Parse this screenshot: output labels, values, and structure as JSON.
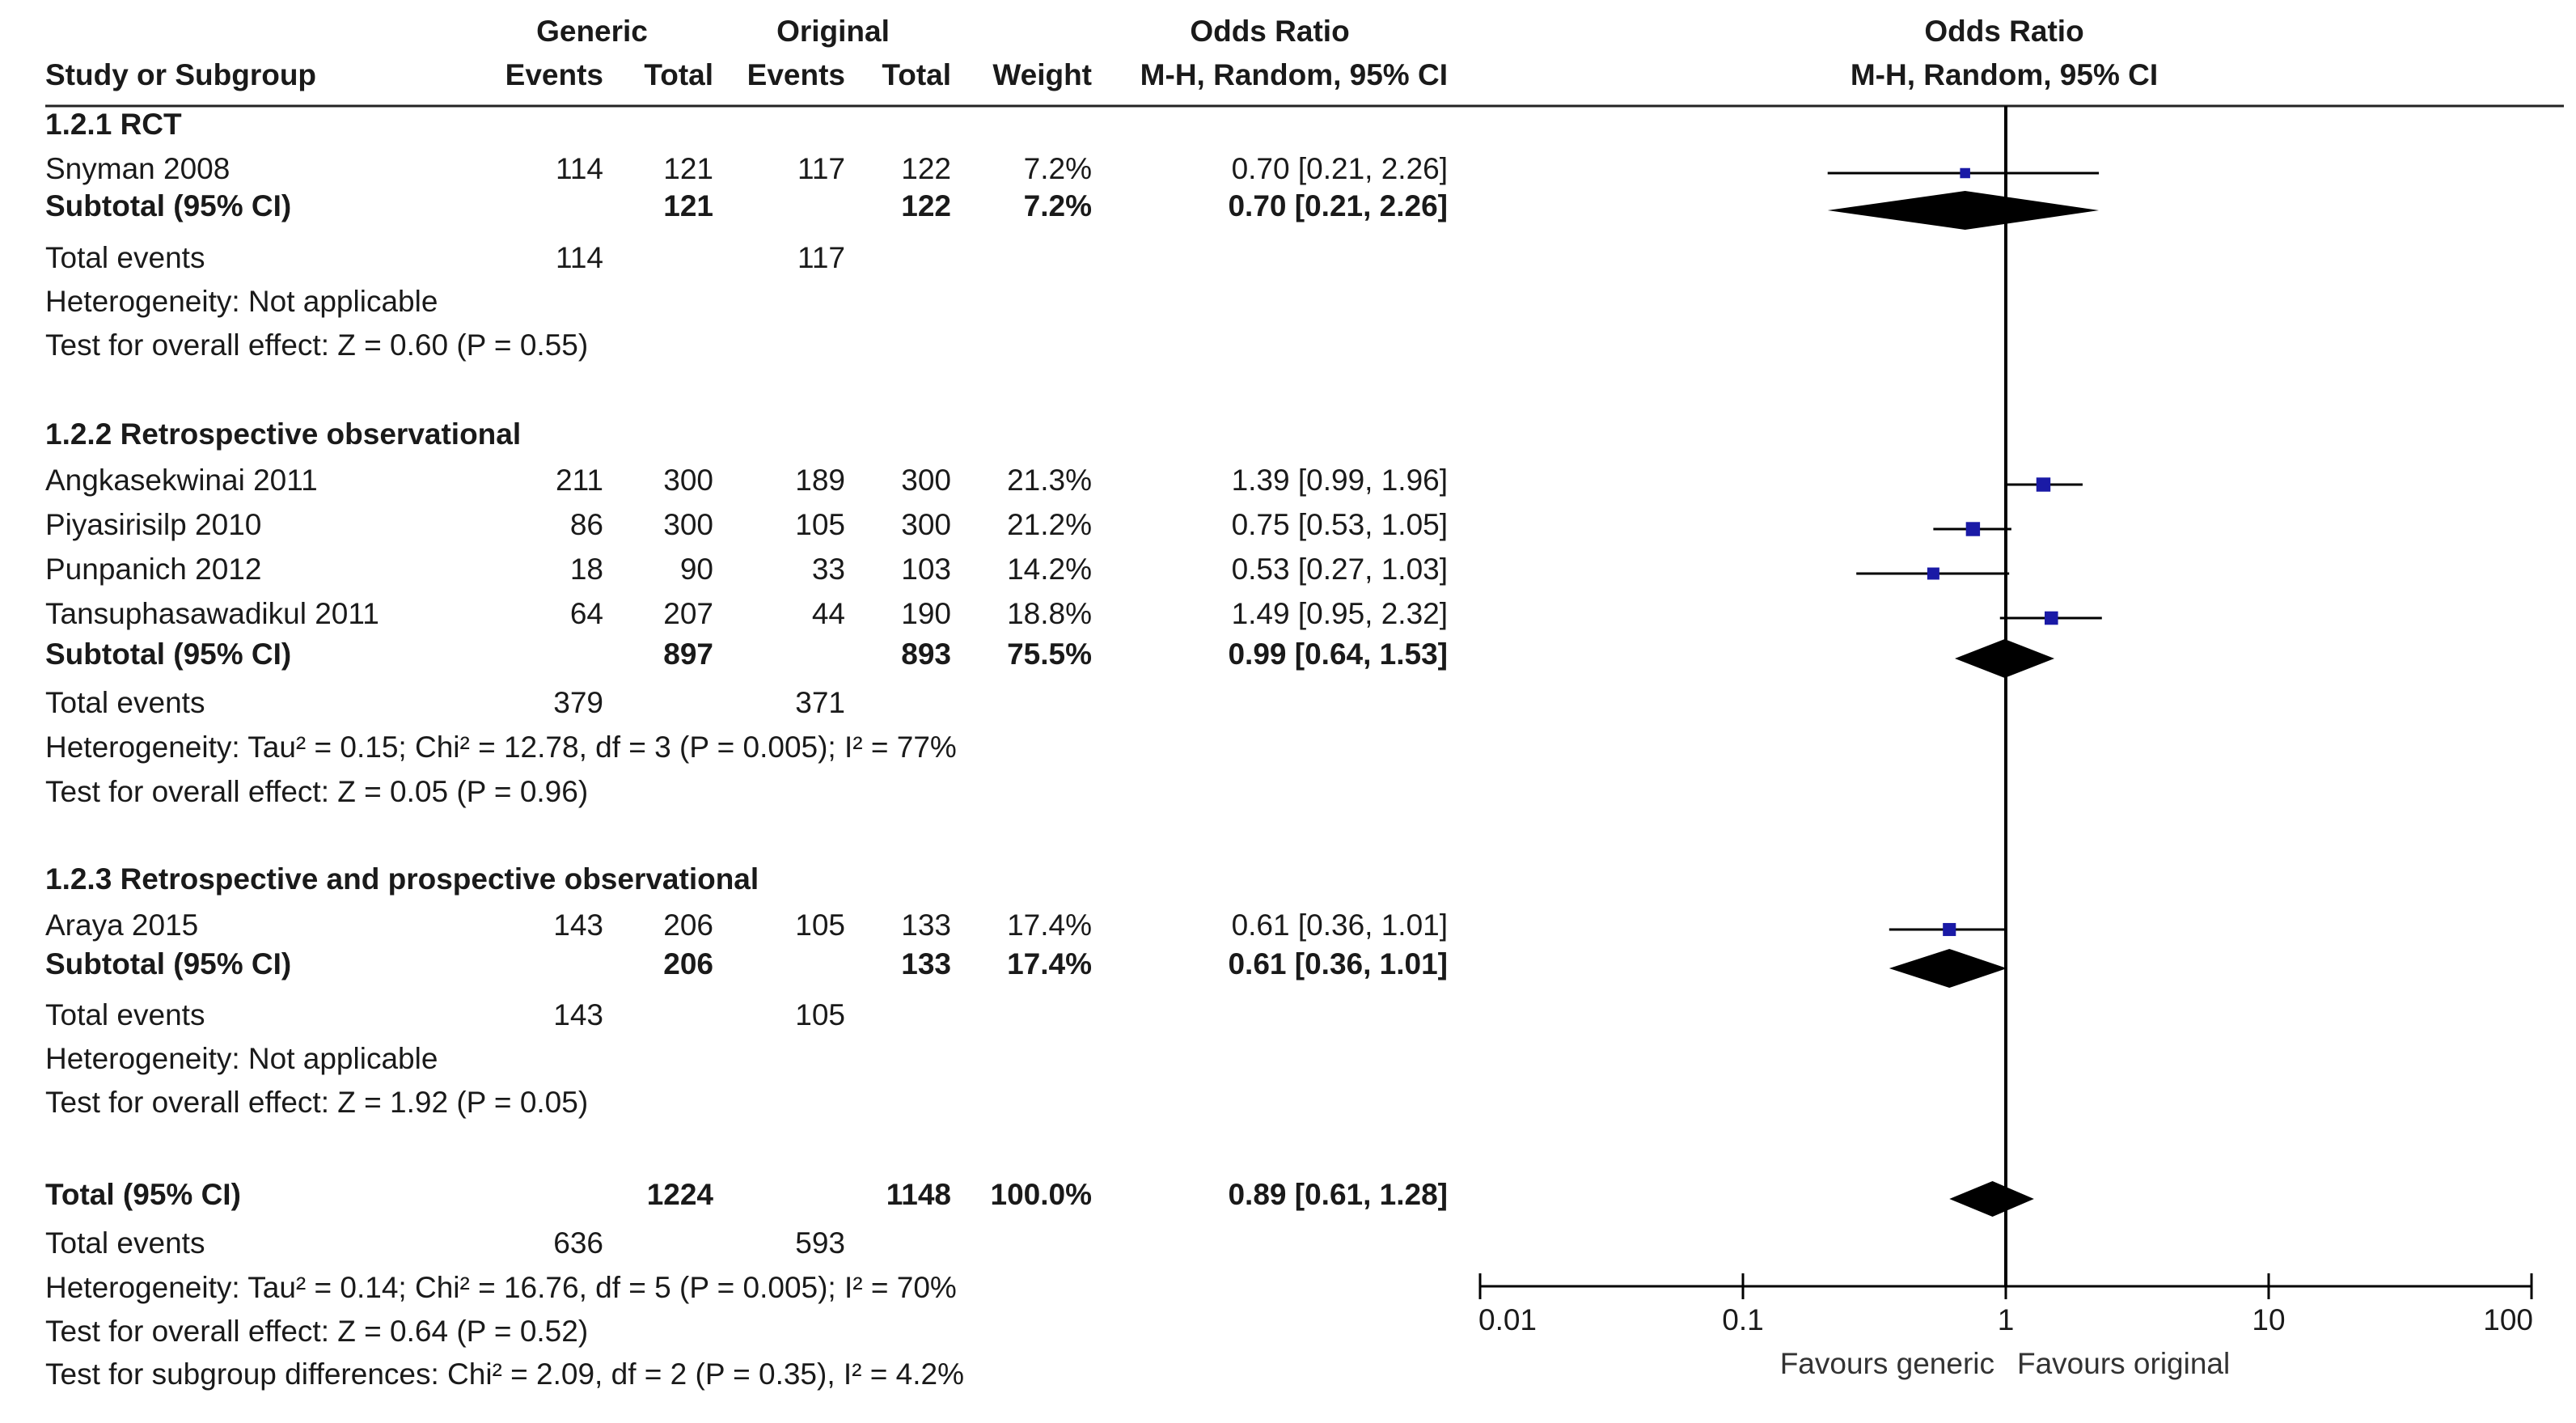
{
  "header": {
    "generic_label": "Generic",
    "original_label": "Original",
    "or_label": "Odds Ratio",
    "col_study": "Study or Subgroup",
    "col_g_events": "Events",
    "col_g_total": "Total",
    "col_o_events": "Events",
    "col_o_total": "Total",
    "col_weight": "Weight",
    "col_method": "M-H, Random, 95% CI",
    "plot_title": "Odds Ratio",
    "plot_method": "M-H, Random, 95% CI"
  },
  "groups": [
    {
      "title": "1.2.1 RCT",
      "studies": [
        {
          "name": "Snyman 2008",
          "g_events": "114",
          "g_total": "121",
          "o_events": "117",
          "o_total": "122",
          "weight": "7.2%",
          "ci_text": "0.70 [0.21, 2.26]"
        }
      ],
      "subtotal": {
        "label": "Subtotal (95% CI)",
        "g_total": "121",
        "o_total": "122",
        "weight": "7.2%",
        "ci_text": "0.70 [0.21, 2.26]"
      },
      "total_events": {
        "label": "Total events",
        "g": "114",
        "o": "117"
      },
      "heterogeneity": "Heterogeneity: Not applicable",
      "overall_effect": "Test for overall effect: Z = 0.60 (P = 0.55)"
    },
    {
      "title": "1.2.2 Retrospective observational",
      "studies": [
        {
          "name": "Angkasekwinai 2011",
          "g_events": "211",
          "g_total": "300",
          "o_events": "189",
          "o_total": "300",
          "weight": "21.3%",
          "ci_text": "1.39 [0.99, 1.96]"
        },
        {
          "name": "Piyasirisilp 2010",
          "g_events": "86",
          "g_total": "300",
          "o_events": "105",
          "o_total": "300",
          "weight": "21.2%",
          "ci_text": "0.75 [0.53, 1.05]"
        },
        {
          "name": "Punpanich 2012",
          "g_events": "18",
          "g_total": "90",
          "o_events": "33",
          "o_total": "103",
          "weight": "14.2%",
          "ci_text": "0.53 [0.27, 1.03]"
        },
        {
          "name": "Tansuphasawadikul 2011",
          "g_events": "64",
          "g_total": "207",
          "o_events": "44",
          "o_total": "190",
          "weight": "18.8%",
          "ci_text": "1.49 [0.95, 2.32]"
        }
      ],
      "subtotal": {
        "label": "Subtotal (95% CI)",
        "g_total": "897",
        "o_total": "893",
        "weight": "75.5%",
        "ci_text": "0.99 [0.64, 1.53]"
      },
      "total_events": {
        "label": "Total events",
        "g": "379",
        "o": "371"
      },
      "heterogeneity": "Heterogeneity: Tau² = 0.15; Chi² = 12.78, df = 3 (P = 0.005); I² = 77%",
      "overall_effect": "Test for overall effect: Z = 0.05 (P = 0.96)"
    },
    {
      "title": "1.2.3 Retrospective and prospective observational",
      "studies": [
        {
          "name": "Araya 2015",
          "g_events": "143",
          "g_total": "206",
          "o_events": "105",
          "o_total": "133",
          "weight": "17.4%",
          "ci_text": "0.61 [0.36, 1.01]"
        }
      ],
      "subtotal": {
        "label": "Subtotal (95% CI)",
        "g_total": "206",
        "o_total": "133",
        "weight": "17.4%",
        "ci_text": "0.61 [0.36, 1.01]"
      },
      "total_events": {
        "label": "Total events",
        "g": "143",
        "o": "105"
      },
      "heterogeneity": "Heterogeneity: Not applicable",
      "overall_effect": "Test for overall effect: Z = 1.92 (P = 0.05)"
    }
  ],
  "overall": {
    "label": "Total (95% CI)",
    "g_total": "1224",
    "o_total": "1148",
    "weight": "100.0%",
    "ci_text": "0.89 [0.61, 1.28]",
    "total_events": {
      "label": "Total events",
      "g": "636",
      "o": "593"
    },
    "heterogeneity": "Heterogeneity: Tau² = 0.14; Chi² = 16.76, df = 5 (P = 0.005); I² = 70%",
    "overall_effect": "Test for overall effect: Z = 0.64 (P = 0.52)",
    "subgroup_diff": "Test for subgroup differences: Chi² = 2.09, df = 2 (P = 0.35), I² = 4.2%"
  },
  "axis": {
    "tick_labels": [
      "0.01",
      "0.1",
      "1",
      "10",
      "100"
    ],
    "favours_left": "Favours generic",
    "favours_right": "Favours original"
  },
  "colors": {
    "marker": "#1a1aa6",
    "diamond": "#000000",
    "text": "#1a1a1a"
  },
  "chart_data": {
    "type": "forest",
    "title": "Odds Ratio",
    "method": "M-H, Random, 95% CI",
    "x_scale": "log",
    "xlim": [
      0.01,
      100
    ],
    "ticks": [
      0.01,
      0.1,
      1,
      10,
      100
    ],
    "reference_line": 1,
    "studies": [
      {
        "name": "Snyman 2008",
        "group": "1.2.1 RCT",
        "or": 0.7,
        "lo": 0.21,
        "hi": 2.26,
        "weight": 7.2
      },
      {
        "name": "Angkasekwinai 2011",
        "group": "1.2.2 Retrospective observational",
        "or": 1.39,
        "lo": 0.99,
        "hi": 1.96,
        "weight": 21.3
      },
      {
        "name": "Piyasirisilp 2010",
        "group": "1.2.2 Retrospective observational",
        "or": 0.75,
        "lo": 0.53,
        "hi": 1.05,
        "weight": 21.2
      },
      {
        "name": "Punpanich 2012",
        "group": "1.2.2 Retrospective observational",
        "or": 0.53,
        "lo": 0.27,
        "hi": 1.03,
        "weight": 14.2
      },
      {
        "name": "Tansuphasawadikul 2011",
        "group": "1.2.2 Retrospective observational",
        "or": 1.49,
        "lo": 0.95,
        "hi": 2.32,
        "weight": 18.8
      },
      {
        "name": "Araya 2015",
        "group": "1.2.3 Retrospective and prospective observational",
        "or": 0.61,
        "lo": 0.36,
        "hi": 1.01,
        "weight": 17.4
      }
    ],
    "subtotals": [
      {
        "group": "1.2.1 RCT",
        "or": 0.7,
        "lo": 0.21,
        "hi": 2.26
      },
      {
        "group": "1.2.2 Retrospective observational",
        "or": 0.99,
        "lo": 0.64,
        "hi": 1.53
      },
      {
        "group": "1.2.3 Retrospective and prospective observational",
        "or": 0.61,
        "lo": 0.36,
        "hi": 1.01
      }
    ],
    "overall": {
      "or": 0.89,
      "lo": 0.61,
      "hi": 1.28
    },
    "xlabel_left": "Favours generic",
    "xlabel_right": "Favours original"
  }
}
